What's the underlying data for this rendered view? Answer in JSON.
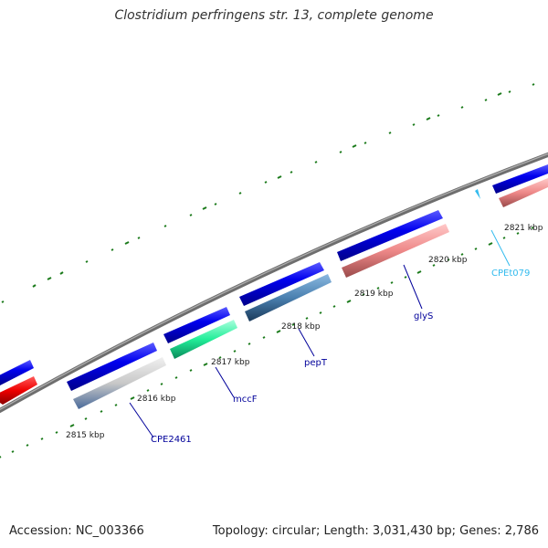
{
  "title": "Clostridium perfringens str. 13, complete genome",
  "footer": {
    "accession": "Accession: NC_003366",
    "summary": "Topology: circular; Length: 3,031,430 bp; Genes: 2,786"
  },
  "colors": {
    "backbone": "#808080",
    "tick": "#1a7a1a",
    "label": "#1a1a1a",
    "gene_label": "#00009a",
    "trna_label": "#33bbee"
  },
  "scale_labels": [
    "2815 kbp",
    "2816 kbp",
    "2817 kbp",
    "2818 kbp",
    "2819 kbp",
    "2820 kbp",
    "2821 kbp"
  ],
  "gene_labels": [
    "CPE2461",
    "mccF",
    "pepT",
    "glyS",
    "CPEt079"
  ]
}
